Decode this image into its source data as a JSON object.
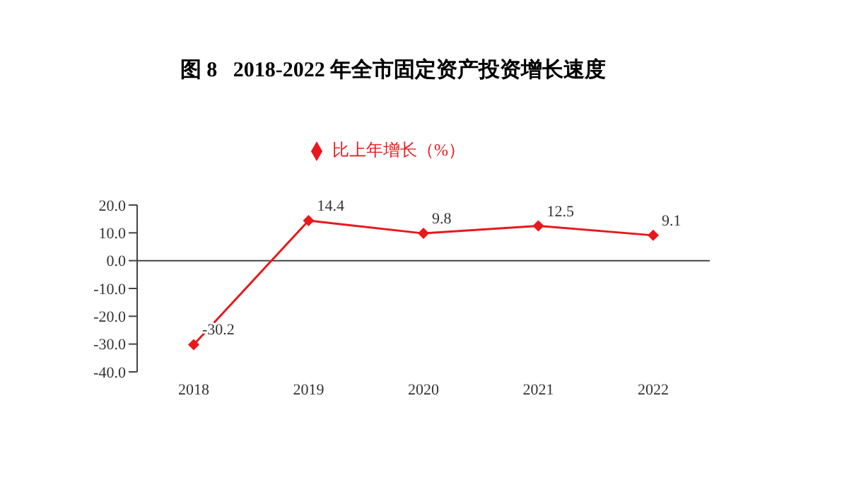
{
  "chart_data": {
    "type": "line",
    "title": "图 8   2018-2022 年全市固定资产投资增长速度",
    "categories": [
      "2018",
      "2019",
      "2020",
      "2021",
      "2022"
    ],
    "series": [
      {
        "name": "比上年增长（%）",
        "color": "#e8181c",
        "values": [
          -30.2,
          14.4,
          9.8,
          12.5,
          9.1
        ]
      }
    ],
    "ylim": [
      -40,
      20
    ],
    "yticks": [
      {
        "value": -40,
        "label": "-40.0"
      },
      {
        "value": -30,
        "label": "-30.0"
      },
      {
        "value": -20,
        "label": "-20.0"
      },
      {
        "value": -10,
        "label": "-10.0"
      },
      {
        "value": 0,
        "label": "0.0"
      },
      {
        "value": 10,
        "label": "10.0"
      },
      {
        "value": 20,
        "label": "20.0"
      }
    ],
    "legend": "top",
    "marker": "diamond",
    "line_style": "solid",
    "data_labels": true
  }
}
